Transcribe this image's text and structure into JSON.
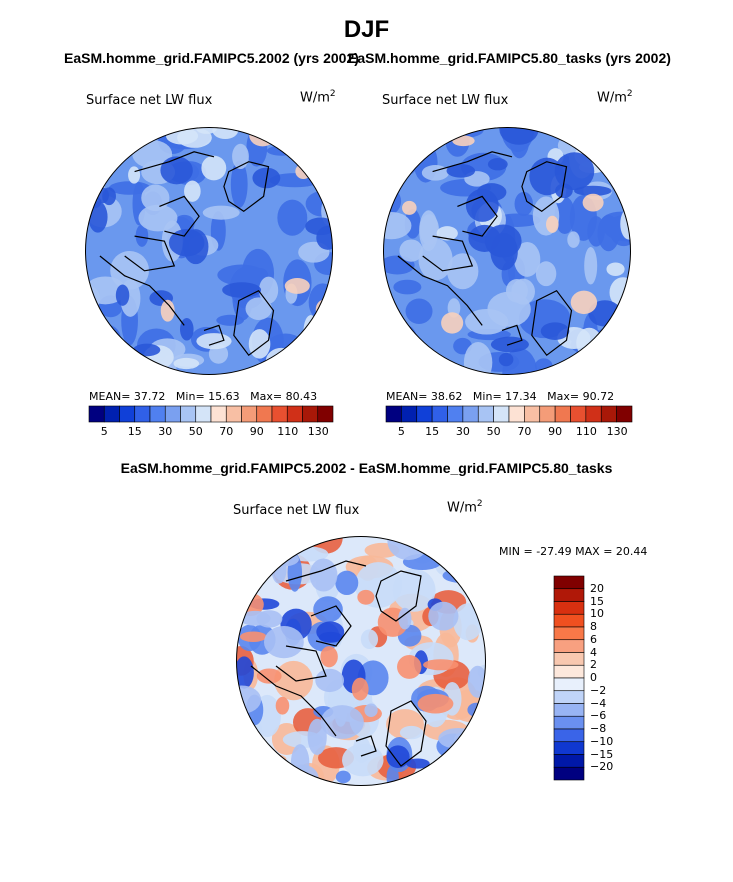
{
  "title": "DJF",
  "panels": [
    {
      "title": "EaSM.homme_grid.FAMIPC5.2002 (yrs 2002)",
      "variable": "Surface net LW flux",
      "units_base": "W/m",
      "units_exp": "2",
      "stats": {
        "mean_label": "MEAN=",
        "mean": "37.72",
        "min_label": "Min=",
        "min": "15.63",
        "max_label": "Max=",
        "max": "80.43"
      }
    },
    {
      "title": "EaSM.homme_grid.FAMIPC5.80_tasks (yrs 2002)",
      "variable": "Surface net LW flux",
      "units_base": "W/m",
      "units_exp": "2",
      "stats": {
        "mean_label": "MEAN=",
        "mean": "38.62",
        "min_label": "Min=",
        "min": "17.34",
        "max_label": "Max=",
        "max": "90.72"
      }
    },
    {
      "title": "EaSM.homme_grid.FAMIPC5.2002 - EaSM.homme_grid.FAMIPC5.80_tasks",
      "variable": "Surface net LW flux",
      "units_base": "W/m",
      "units_exp": "2",
      "stats": {
        "min_label": "MIN =",
        "min": "-27.49",
        "max_label": "MAX =",
        "max": "20.44"
      }
    }
  ],
  "chart_data": [
    {
      "type": "heatmap",
      "projection": "north polar stereographic",
      "title": "EaSM.homme_grid.FAMIPC5.2002 (yrs 2002)",
      "variable": "Surface net LW flux",
      "units": "W/m^2",
      "mean": 37.72,
      "min": 15.63,
      "max": 80.43,
      "colorbar_labels": [
        "5",
        "15",
        "30",
        "50",
        "70",
        "90",
        "110",
        "130"
      ],
      "colorbar_colors": [
        "#000080",
        "#0020b0",
        "#1040d8",
        "#3060e8",
        "#5080f0",
        "#7aa0f0",
        "#a8c4f4",
        "#d4e4f8",
        "#fde2d4",
        "#f8bfa4",
        "#f49c78",
        "#f07850",
        "#e85030",
        "#d03018",
        "#a81808",
        "#800000"
      ]
    },
    {
      "type": "heatmap",
      "projection": "north polar stereographic",
      "title": "EaSM.homme_grid.FAMIPC5.80_tasks (yrs 2002)",
      "variable": "Surface net LW flux",
      "units": "W/m^2",
      "mean": 38.62,
      "min": 17.34,
      "max": 90.72,
      "colorbar_labels": [
        "5",
        "15",
        "30",
        "50",
        "70",
        "90",
        "110",
        "130"
      ],
      "colorbar_colors": [
        "#000080",
        "#0020b0",
        "#1040d8",
        "#3060e8",
        "#5080f0",
        "#7aa0f0",
        "#a8c4f4",
        "#d4e4f8",
        "#fde2d4",
        "#f8bfa4",
        "#f49c78",
        "#f07850",
        "#e85030",
        "#d03018",
        "#a81808",
        "#800000"
      ]
    },
    {
      "type": "heatmap",
      "projection": "north polar stereographic",
      "title": "EaSM.homme_grid.FAMIPC5.2002 - EaSM.homme_grid.FAMIPC5.80_tasks",
      "variable": "Surface net LW flux",
      "units": "W/m^2",
      "min": -27.49,
      "max": 20.44,
      "colorbar_labels": [
        "20",
        "15",
        "10",
        "8",
        "6",
        "4",
        "2",
        "0",
        "−2",
        "−4",
        "−6",
        "−8",
        "−10",
        "−15",
        "−20"
      ],
      "colorbar_colors": [
        "#800000",
        "#b01808",
        "#d83010",
        "#f05020",
        "#f87848",
        "#f8a080",
        "#f8c8b0",
        "#fde8dc",
        "#e8f0fc",
        "#c0d4f8",
        "#98b4f4",
        "#6a90f0",
        "#3a64e8",
        "#1038d0",
        "#0018a8",
        "#000080"
      ]
    }
  ],
  "colors": {
    "ocean_blue": "#5a8ee8",
    "light_blue": "#a8c4f4",
    "dark_blue": "#2050d8",
    "peach": "#f8c8b0",
    "red": "#d83010"
  }
}
